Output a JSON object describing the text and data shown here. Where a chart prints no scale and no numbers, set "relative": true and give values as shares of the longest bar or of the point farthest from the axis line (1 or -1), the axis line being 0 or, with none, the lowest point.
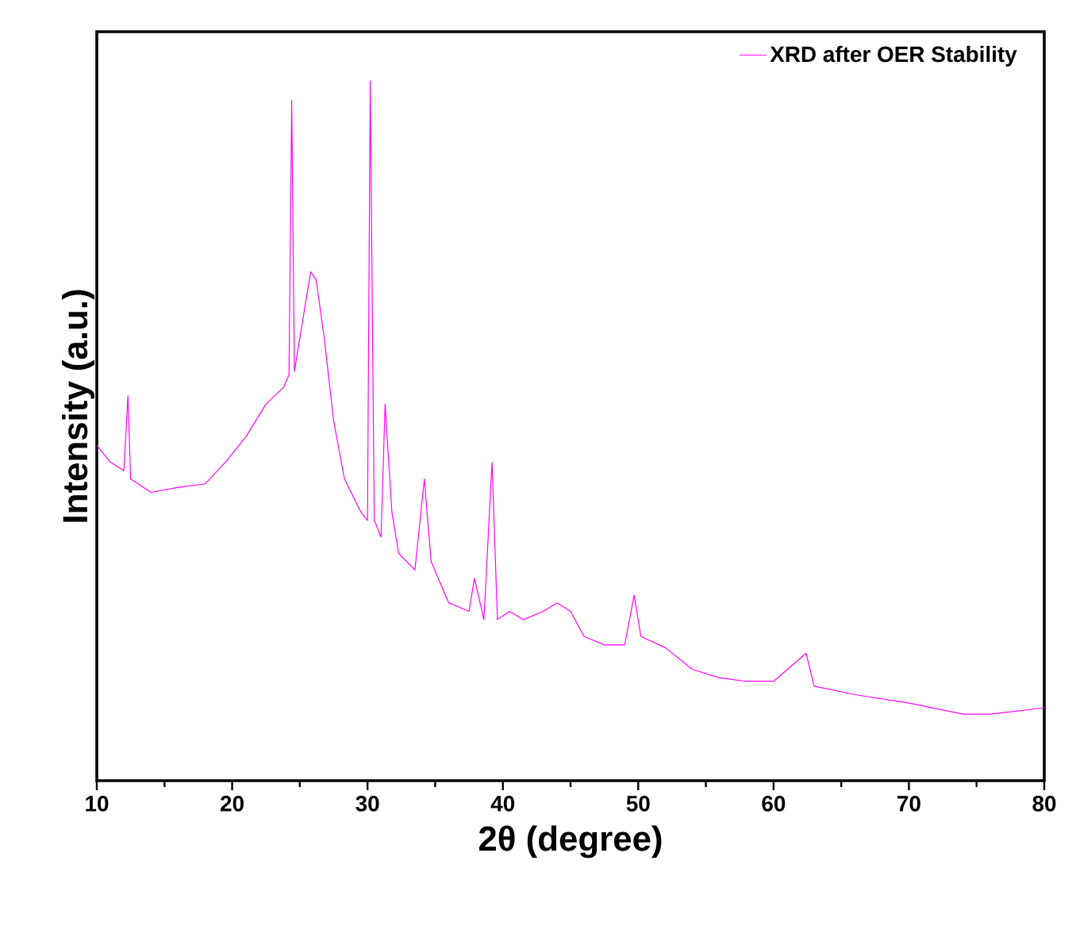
{
  "chart_data": {
    "type": "line",
    "xlabel": "2θ (degree)",
    "ylabel": "Intensity (a.u.)",
    "relative": true,
    "xlim": [
      10,
      80
    ],
    "xticks": [
      10,
      20,
      30,
      40,
      50,
      60,
      70,
      80
    ],
    "legend": "top right",
    "grid": false,
    "marker": "none",
    "line_style": "solid",
    "series": [
      {
        "name": "XRD after OER Stability",
        "color": "#ff00ff",
        "x": [
          10,
          11,
          12,
          12.3,
          12.5,
          14,
          16,
          18,
          19.5,
          21,
          22.5,
          23.8,
          24.2,
          24.4,
          24.6,
          25.2,
          25.8,
          26.2,
          26.8,
          27.5,
          28.3,
          29.5,
          30.0,
          30.2,
          30.5,
          31.0,
          31.3,
          31.8,
          32.3,
          33.5,
          34.2,
          34.7,
          36,
          37.5,
          37.9,
          38.6,
          39.2,
          39.6,
          40.5,
          41.5,
          43,
          44,
          45,
          46,
          47.5,
          49,
          49.7,
          50.2,
          52,
          54,
          56,
          58,
          60,
          62.4,
          63,
          66,
          70,
          74,
          76,
          80
        ],
        "values": [
          0.479,
          0.455,
          0.443,
          0.55,
          0.431,
          0.412,
          0.419,
          0.424,
          0.455,
          0.491,
          0.538,
          0.562,
          0.58,
          0.972,
          0.585,
          0.656,
          0.727,
          0.716,
          0.633,
          0.514,
          0.431,
          0.384,
          0.372,
          1.0,
          0.372,
          0.348,
          0.538,
          0.384,
          0.325,
          0.301,
          0.431,
          0.313,
          0.254,
          0.242,
          0.289,
          0.23,
          0.455,
          0.23,
          0.242,
          0.23,
          0.242,
          0.254,
          0.242,
          0.206,
          0.194,
          0.194,
          0.265,
          0.206,
          0.19,
          0.159,
          0.147,
          0.142,
          0.142,
          0.182,
          0.135,
          0.123,
          0.111,
          0.095,
          0.095,
          0.104
        ]
      }
    ]
  }
}
